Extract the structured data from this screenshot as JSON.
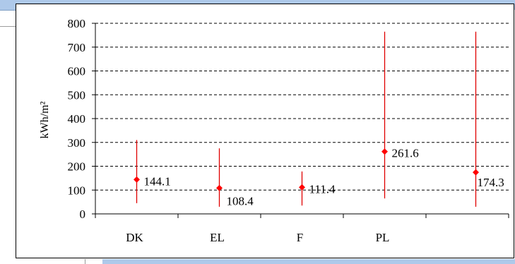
{
  "chart_data": {
    "type": "scatter",
    "categories": [
      "DK",
      "EL",
      "F",
      "PL",
      ""
    ],
    "series": [
      {
        "values": [
          144.1,
          108.4,
          111.4,
          261.6,
          174.3
        ],
        "min": [
          45,
          30,
          35,
          65,
          30
        ],
        "max": [
          310,
          275,
          178,
          765,
          765
        ],
        "labels": [
          "144.1",
          "108.4",
          "111.4",
          "261.6",
          "174.3"
        ]
      }
    ],
    "ylabel": "kWh/m²",
    "ylim": [
      0,
      800
    ],
    "yticks": [
      "0",
      "100",
      "200",
      "300",
      "400",
      "500",
      "600",
      "700",
      "800"
    ],
    "grid": "dashed horizontal",
    "marker_color": "#ff0000",
    "errorbar_color": "#e00000"
  }
}
